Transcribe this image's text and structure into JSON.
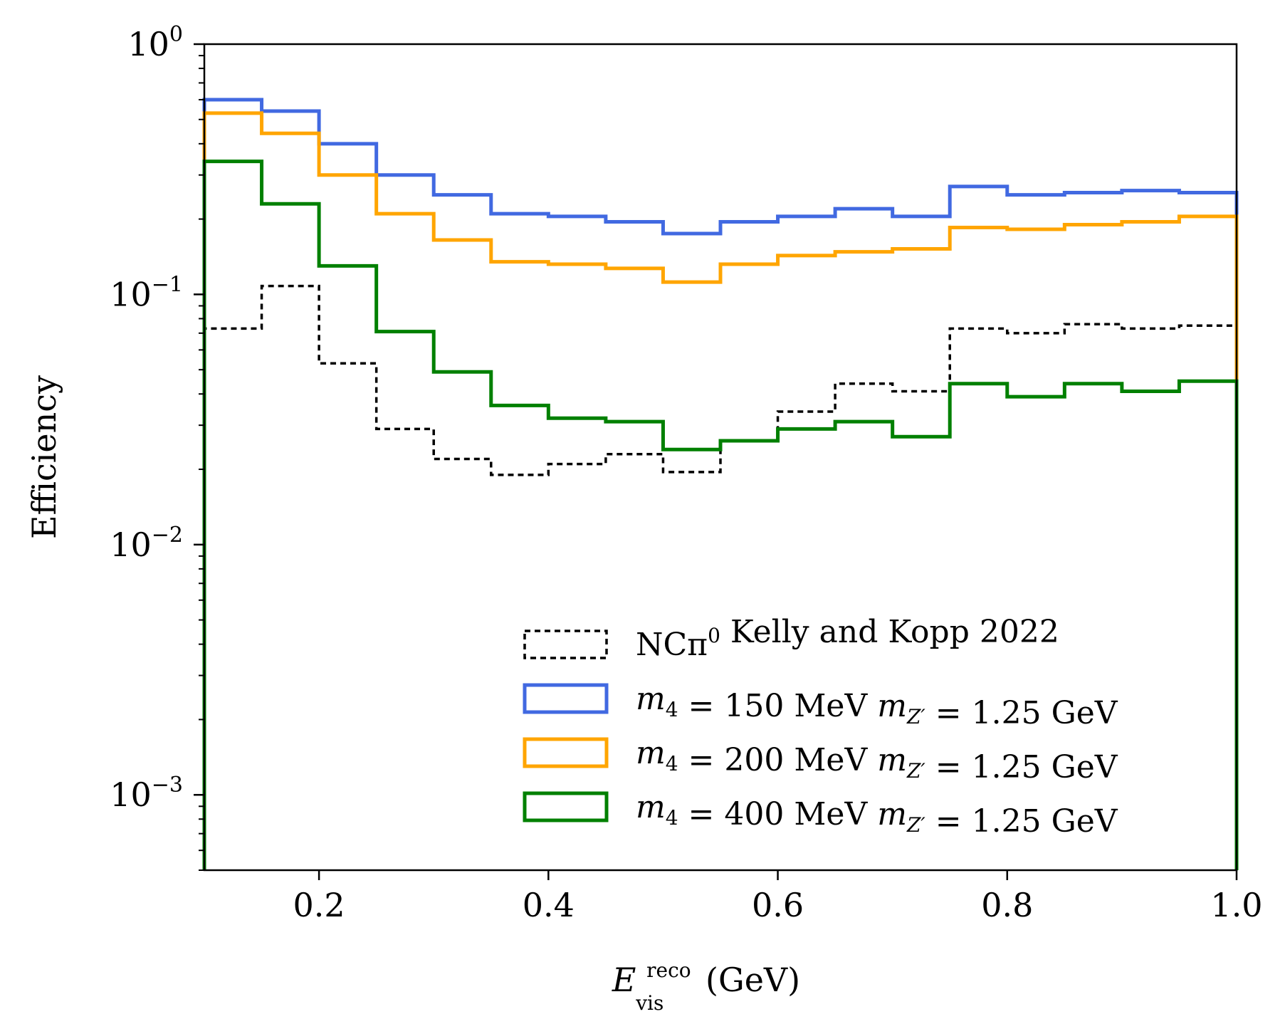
{
  "chart_data": {
    "type": "line",
    "style": "step-histogram",
    "xlabel": {
      "base": "E",
      "sup": "reco",
      "sub": "vis",
      "unit": "(GeV)"
    },
    "ylabel": "Efficiency",
    "yscale": "log",
    "xlim": [
      0.1,
      1.0
    ],
    "ylim": [
      0.0005,
      1.0
    ],
    "xticks": [
      "0.2",
      "0.4",
      "0.6",
      "0.8",
      "1.0"
    ],
    "xtick_values": [
      0.2,
      0.4,
      0.6,
      0.8,
      1.0
    ],
    "yticks": [
      {
        "value": 1,
        "base": "10",
        "exp": "0"
      },
      {
        "value": 0.1,
        "base": "10",
        "exp": "−1"
      },
      {
        "value": 0.01,
        "base": "10",
        "exp": "−2"
      },
      {
        "value": 0.001,
        "base": "10",
        "exp": "−3"
      }
    ],
    "bin_edges": [
      0.1,
      0.15,
      0.2,
      0.25,
      0.3,
      0.35,
      0.4,
      0.45,
      0.5,
      0.55,
      0.6,
      0.65,
      0.7,
      0.75,
      0.8,
      0.85,
      0.9,
      0.95,
      1.0
    ],
    "legend_position": "lower-right",
    "series": [
      {
        "name": "NCπ⁰ Kelly and Kopp 2022",
        "color": "#000000",
        "dashed": true,
        "legend_parts": [
          {
            "t": "NCπ",
            "c": "normal"
          },
          {
            "t": "0",
            "c": "sup"
          },
          {
            "t": " Kelly and Kopp 2022",
            "c": "normal"
          }
        ],
        "values": [
          0.073,
          0.108,
          0.053,
          0.029,
          0.022,
          0.019,
          0.021,
          0.023,
          0.0195,
          0.026,
          0.034,
          0.044,
          0.041,
          0.073,
          0.07,
          0.076,
          0.073,
          0.075
        ]
      },
      {
        "name": "m4 = 150 MeV mZ' = 1.25 GeV",
        "color": "#4169e1",
        "dashed": false,
        "legend_parts": [
          {
            "t": "m",
            "c": "italic"
          },
          {
            "t": "4",
            "c": "sub"
          },
          {
            "t": " = 150 MeV ",
            "c": "normal"
          },
          {
            "t": "m",
            "c": "italic"
          },
          {
            "t": "Z′",
            "c": "sub-italic"
          },
          {
            "t": " = 1.25 GeV",
            "c": "normal"
          }
        ],
        "values": [
          0.6,
          0.54,
          0.4,
          0.3,
          0.25,
          0.21,
          0.205,
          0.195,
          0.175,
          0.195,
          0.205,
          0.22,
          0.205,
          0.27,
          0.25,
          0.255,
          0.26,
          0.255
        ]
      },
      {
        "name": "m4 = 200 MeV mZ' = 1.25 GeV",
        "color": "#ffa500",
        "dashed": false,
        "legend_parts": [
          {
            "t": "m",
            "c": "italic"
          },
          {
            "t": "4",
            "c": "sub"
          },
          {
            "t": " = 200 MeV ",
            "c": "normal"
          },
          {
            "t": "m",
            "c": "italic"
          },
          {
            "t": "Z′",
            "c": "sub-italic"
          },
          {
            "t": " = 1.25 GeV",
            "c": "normal"
          }
        ],
        "values": [
          0.53,
          0.44,
          0.3,
          0.21,
          0.165,
          0.135,
          0.132,
          0.127,
          0.112,
          0.132,
          0.143,
          0.148,
          0.152,
          0.185,
          0.182,
          0.19,
          0.195,
          0.205
        ]
      },
      {
        "name": "m4 = 400 MeV mZ' = 1.25 GeV",
        "color": "#008000",
        "dashed": false,
        "legend_parts": [
          {
            "t": "m",
            "c": "italic"
          },
          {
            "t": "4",
            "c": "sub"
          },
          {
            "t": " = 400 MeV ",
            "c": "normal"
          },
          {
            "t": "m",
            "c": "italic"
          },
          {
            "t": "Z′",
            "c": "sub-italic"
          },
          {
            "t": " = 1.25 GeV",
            "c": "normal"
          }
        ],
        "values": [
          0.34,
          0.23,
          0.13,
          0.071,
          0.049,
          0.036,
          0.032,
          0.031,
          0.024,
          0.026,
          0.029,
          0.031,
          0.027,
          0.044,
          0.039,
          0.044,
          0.041,
          0.045
        ]
      }
    ]
  }
}
